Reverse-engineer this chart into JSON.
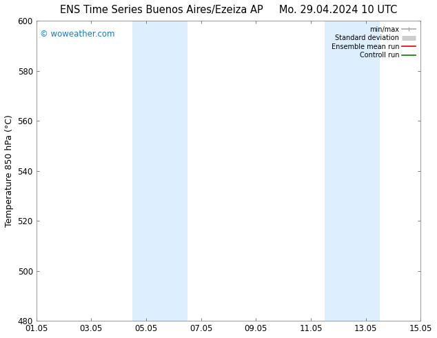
{
  "title_left": "ENS Time Series Buenos Aires/Ezeiza AP",
  "title_right": "Mo. 29.04.2024 10 UTC",
  "ylabel": "Temperature 850 hPa (°C)",
  "ylim": [
    480,
    600
  ],
  "yticks": [
    480,
    500,
    520,
    540,
    560,
    580,
    600
  ],
  "xtick_labels": [
    "01.05",
    "03.05",
    "05.05",
    "07.05",
    "09.05",
    "11.05",
    "13.05",
    "15.05"
  ],
  "xtick_positions": [
    0,
    2,
    4,
    6,
    8,
    10,
    12,
    14
  ],
  "shade_bands": [
    {
      "x_start": 3.5,
      "x_end": 5.5,
      "color": "#ddeeff"
    },
    {
      "x_start": 10.5,
      "x_end": 12.5,
      "color": "#ddeeff"
    }
  ],
  "watermark_text": "© woweather.com",
  "watermark_color": "#1a7abf",
  "legend_items": [
    {
      "label": "min/max",
      "color": "#aaaaaa",
      "lw": 1.2
    },
    {
      "label": "Standard deviation",
      "color": "#cccccc",
      "lw": 5
    },
    {
      "label": "Ensemble mean run",
      "color": "#dd0000",
      "lw": 1.2
    },
    {
      "label": "Controll run",
      "color": "#007700",
      "lw": 1.2
    }
  ],
  "bg_color": "#ffffff",
  "plot_bg_color": "#ffffff",
  "title_fontsize": 10.5,
  "axis_label_fontsize": 9,
  "tick_fontsize": 8.5,
  "watermark_fontsize": 8.5
}
